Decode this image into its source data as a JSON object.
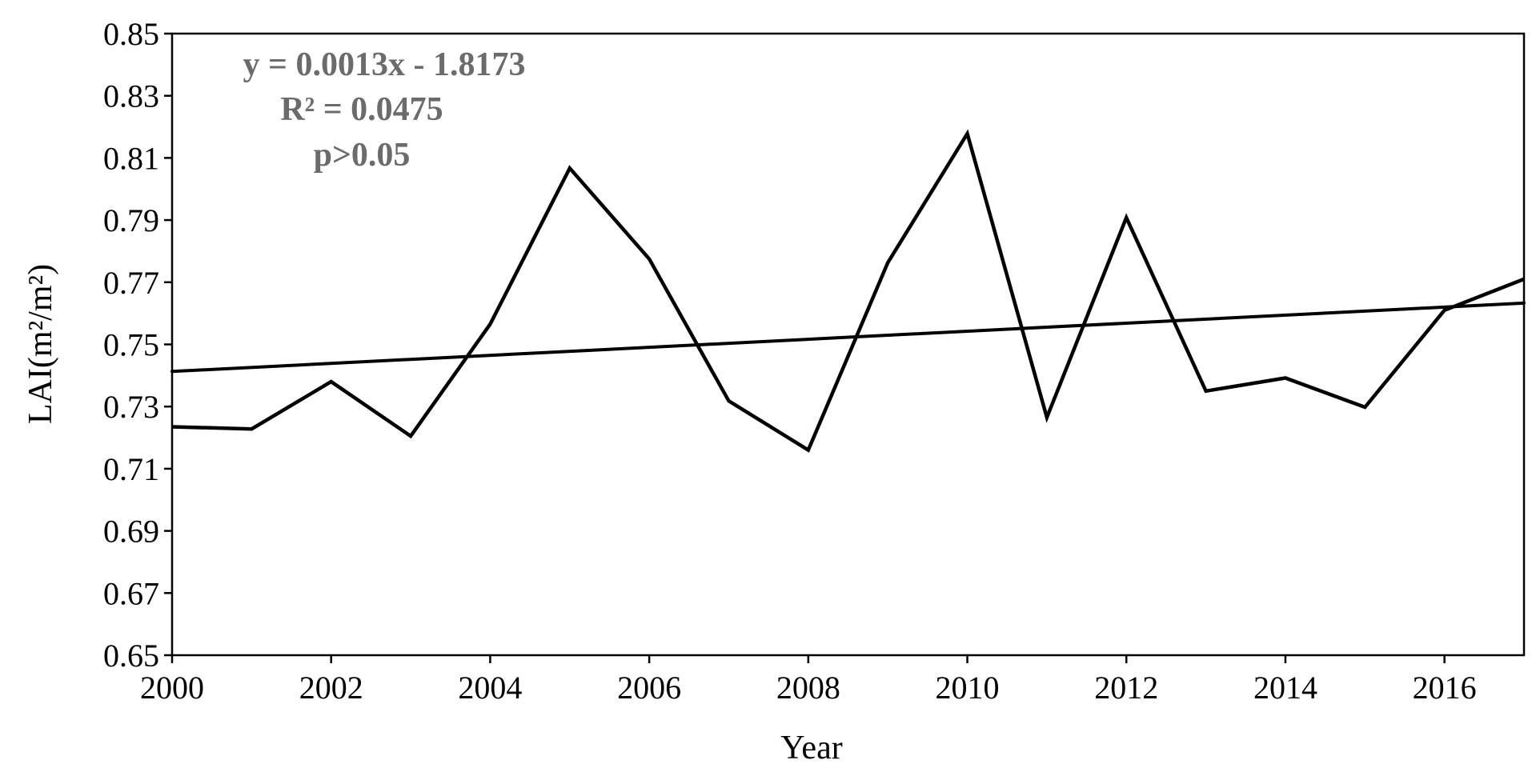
{
  "chart_data": {
    "type": "line",
    "xlabel": "Year",
    "ylabel": "LAI(m²/m²)",
    "xlim": [
      2000,
      2017
    ],
    "ylim": [
      0.65,
      0.85
    ],
    "x_ticks": [
      "2000",
      "2002",
      "2004",
      "2006",
      "2008",
      "2010",
      "2012",
      "2014",
      "2016"
    ],
    "y_ticks": [
      "0.85",
      "0.83",
      "0.81",
      "0.79",
      "0.77",
      "0.75",
      "0.73",
      "0.71",
      "0.69",
      "0.67",
      "0.65"
    ],
    "grid": false,
    "series": [
      {
        "x": [
          2000,
          2001,
          2002,
          2003,
          2004,
          2005,
          2006,
          2007,
          2008,
          2009,
          2010,
          2011,
          2012,
          2013,
          2014,
          2015,
          2016,
          2017
        ],
        "values": [
          0.7235,
          0.7228,
          0.738,
          0.7205,
          0.7565,
          0.8067,
          0.7775,
          0.7318,
          0.716,
          0.7763,
          0.8178,
          0.7265,
          0.7908,
          0.735,
          0.7392,
          0.7298,
          0.761,
          0.771
        ],
        "color": "#000000"
      }
    ],
    "trendline": {
      "slope": 0.0013,
      "intercept": -1.8173,
      "x_range": [
        2000,
        2017
      ],
      "y_range": [
        0.7413,
        0.7633
      ],
      "color": "#000000"
    },
    "annotations": {
      "equation": "y = 0.0013x - 1.8173",
      "r_squared": "R² = 0.0475",
      "p_value": "p>0.05",
      "color": "#6b6b6b"
    }
  }
}
